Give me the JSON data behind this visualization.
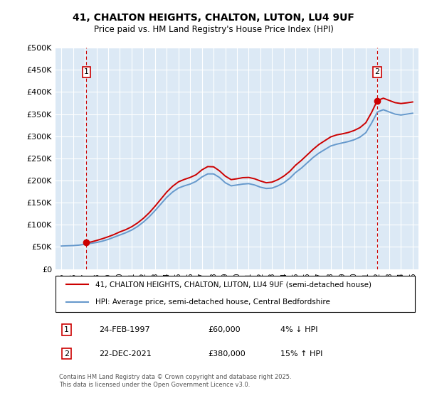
{
  "title_line1": "41, CHALTON HEIGHTS, CHALTON, LUTON, LU4 9UF",
  "title_line2": "Price paid vs. HM Land Registry's House Price Index (HPI)",
  "bg_color": "#dce9f5",
  "plot_bg_color": "#dce9f5",
  "line1_color": "#cc0000",
  "line2_color": "#6699cc",
  "grid_color": "#ffffff",
  "ylim": [
    0,
    500000
  ],
  "yticks": [
    0,
    50000,
    100000,
    150000,
    200000,
    250000,
    300000,
    350000,
    400000,
    450000,
    500000
  ],
  "ytick_labels": [
    "£0",
    "£50K",
    "£100K",
    "£150K",
    "£200K",
    "£250K",
    "£300K",
    "£350K",
    "£400K",
    "£450K",
    "£500K"
  ],
  "xlim_start": 1994.5,
  "xlim_end": 2025.5,
  "xtick_years": [
    1995,
    1996,
    1997,
    1998,
    1999,
    2000,
    2001,
    2002,
    2003,
    2004,
    2005,
    2006,
    2007,
    2008,
    2009,
    2010,
    2011,
    2012,
    2013,
    2014,
    2015,
    2016,
    2017,
    2018,
    2019,
    2020,
    2021,
    2022,
    2023,
    2024,
    2025
  ],
  "transaction1_x": 1997.14,
  "transaction1_y": 60000,
  "transaction1_label": "1",
  "transaction2_x": 2021.97,
  "transaction2_y": 380000,
  "transaction2_label": "2",
  "legend_line1": "41, CHALTON HEIGHTS, CHALTON, LUTON, LU4 9UF (semi-detached house)",
  "legend_line2": "HPI: Average price, semi-detached house, Central Bedfordshire",
  "table_row1": [
    "1",
    "24-FEB-1997",
    "£60,000",
    "4% ↓ HPI"
  ],
  "table_row2": [
    "2",
    "22-DEC-2021",
    "£380,000",
    "15% ↑ HPI"
  ],
  "footer": "Contains HM Land Registry data © Crown copyright and database right 2025.\nThis data is licensed under the Open Government Licence v3.0.",
  "hpi_x": [
    1995.0,
    1995.5,
    1996.0,
    1996.5,
    1997.0,
    1997.5,
    1998.0,
    1998.5,
    1999.0,
    1999.5,
    2000.0,
    2000.5,
    2001.0,
    2001.5,
    2002.0,
    2002.5,
    2003.0,
    2003.5,
    2004.0,
    2004.5,
    2005.0,
    2005.5,
    2006.0,
    2006.5,
    2007.0,
    2007.5,
    2008.0,
    2008.5,
    2009.0,
    2009.5,
    2010.0,
    2010.5,
    2011.0,
    2011.5,
    2012.0,
    2012.5,
    2013.0,
    2013.5,
    2014.0,
    2014.5,
    2015.0,
    2015.5,
    2016.0,
    2016.5,
    2017.0,
    2017.5,
    2018.0,
    2018.5,
    2019.0,
    2019.5,
    2020.0,
    2020.5,
    2021.0,
    2021.5,
    2022.0,
    2022.5,
    2023.0,
    2023.5,
    2024.0,
    2024.5,
    2025.0
  ],
  "hpi_y": [
    52000,
    52500,
    53000,
    54000,
    56000,
    58000,
    60000,
    63000,
    67000,
    72000,
    77000,
    82000,
    88000,
    96000,
    106000,
    118000,
    132000,
    147000,
    162000,
    174000,
    183000,
    188000,
    192000,
    198000,
    208000,
    215000,
    215000,
    207000,
    195000,
    188000,
    190000,
    192000,
    193000,
    190000,
    185000,
    182000,
    183000,
    188000,
    195000,
    205000,
    218000,
    228000,
    240000,
    252000,
    262000,
    270000,
    278000,
    282000,
    285000,
    288000,
    292000,
    298000,
    308000,
    330000,
    355000,
    360000,
    355000,
    350000,
    348000,
    350000,
    352000
  ],
  "prop_x": [
    1997.14,
    1997.5,
    1998.0,
    1998.5,
    1999.0,
    1999.5,
    2000.0,
    2000.5,
    2001.0,
    2001.5,
    2002.0,
    2002.5,
    2003.0,
    2003.5,
    2004.0,
    2004.5,
    2005.0,
    2005.5,
    2006.0,
    2006.5,
    2007.0,
    2007.5,
    2008.0,
    2008.5,
    2009.0,
    2009.5,
    2010.0,
    2010.5,
    2011.0,
    2011.5,
    2012.0,
    2012.5,
    2013.0,
    2013.5,
    2014.0,
    2014.5,
    2015.0,
    2015.5,
    2016.0,
    2016.5,
    2017.0,
    2017.5,
    2018.0,
    2018.5,
    2019.0,
    2019.5,
    2020.0,
    2020.5,
    2021.0,
    2021.5,
    2021.97,
    2022.0,
    2022.5,
    2023.0,
    2023.5,
    2024.0,
    2024.5,
    2025.0
  ],
  "prop_y": [
    60000,
    61000,
    64500,
    68500,
    73000,
    78000,
    84000,
    89000,
    95500,
    104000,
    114500,
    127000,
    142000,
    158000,
    174000,
    187000,
    197000,
    202500,
    207000,
    213000,
    224000,
    231500,
    231000,
    222000,
    210000,
    202000,
    204000,
    206500,
    207000,
    204000,
    199000,
    195000,
    196500,
    202000,
    210000,
    220500,
    234500,
    245500,
    258000,
    270500,
    281500,
    290000,
    298500,
    303000,
    305500,
    308500,
    313000,
    319500,
    330500,
    354000,
    380000,
    381000,
    386000,
    381000,
    376000,
    374000,
    375500,
    377500
  ]
}
